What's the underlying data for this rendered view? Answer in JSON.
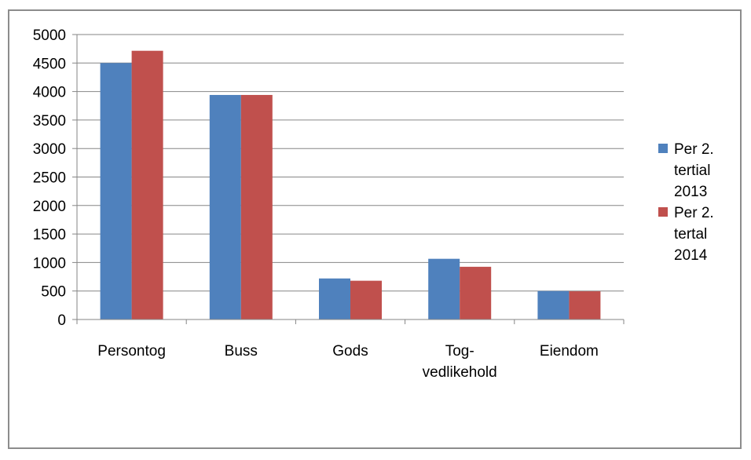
{
  "chart_data": {
    "type": "bar",
    "categories": [
      [
        "Persontog"
      ],
      [
        "Buss"
      ],
      [
        "Gods"
      ],
      [
        "Tog-",
        "vedlikehold"
      ],
      [
        "Eiendom"
      ]
    ],
    "series": [
      {
        "name": [
          "Per 2.",
          "tertial",
          "2013"
        ],
        "color": "#4f81bd",
        "values": [
          4500,
          3940,
          720,
          1065,
          500
        ]
      },
      {
        "name": [
          "Per 2.",
          "tertal",
          "2014"
        ],
        "color": "#c0504d",
        "values": [
          4715,
          3940,
          680,
          925,
          495
        ]
      }
    ],
    "ylim": [
      0,
      5000
    ],
    "yticks": [
      0,
      500,
      1000,
      1500,
      2000,
      2500,
      3000,
      3500,
      4000,
      4500,
      5000
    ],
    "grid": true,
    "legend_position": "right",
    "title": "",
    "xlabel": "",
    "ylabel": ""
  }
}
